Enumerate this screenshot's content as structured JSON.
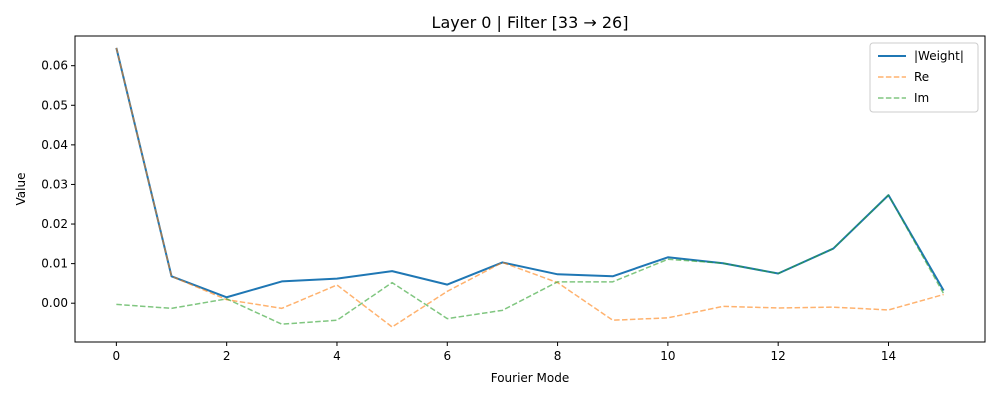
{
  "chart_data": {
    "type": "line",
    "title": "Layer 0 | Filter [33 → 26]",
    "xlabel": "Fourier Mode",
    "ylabel": "Value",
    "xlim": [
      -0.75,
      15.75
    ],
    "ylim": [
      -0.0098,
      0.0675
    ],
    "xticks": [
      0,
      2,
      4,
      6,
      8,
      10,
      12,
      14
    ],
    "yticks": [
      0.0,
      0.01,
      0.02,
      0.03,
      0.04,
      0.05,
      0.06
    ],
    "ytick_labels": [
      "0.00",
      "0.01",
      "0.02",
      "0.03",
      "0.04",
      "0.05",
      "0.06"
    ],
    "grid": false,
    "legend_position": "top-right",
    "x": [
      0,
      1,
      2,
      3,
      4,
      5,
      6,
      7,
      8,
      9,
      10,
      11,
      12,
      13,
      14,
      15
    ],
    "series": [
      {
        "name": "|Weight|",
        "style": "solid",
        "color": "#1f77b4",
        "values": [
          0.0645,
          0.0068,
          0.0015,
          0.0055,
          0.0062,
          0.0081,
          0.0047,
          0.0103,
          0.0073,
          0.0068,
          0.0116,
          0.0101,
          0.0075,
          0.0138,
          0.0273,
          0.0032
        ]
      },
      {
        "name": "Re",
        "style": "dashed",
        "color": "#ff7f0e",
        "values": [
          0.0645,
          0.0068,
          0.0009,
          -0.0013,
          0.0046,
          -0.006,
          0.003,
          0.0103,
          0.0052,
          -0.0043,
          -0.0037,
          -0.0008,
          -0.0012,
          -0.001,
          -0.0017,
          0.0022
        ]
      },
      {
        "name": "Im",
        "style": "dashed",
        "color": "#2ca02c",
        "values": [
          -0.0003,
          -0.0013,
          0.0011,
          -0.0053,
          -0.0043,
          0.0052,
          -0.0039,
          -0.0018,
          0.0054,
          0.0054,
          0.0111,
          0.0101,
          0.0075,
          0.0138,
          0.0273,
          0.0024
        ]
      }
    ]
  }
}
